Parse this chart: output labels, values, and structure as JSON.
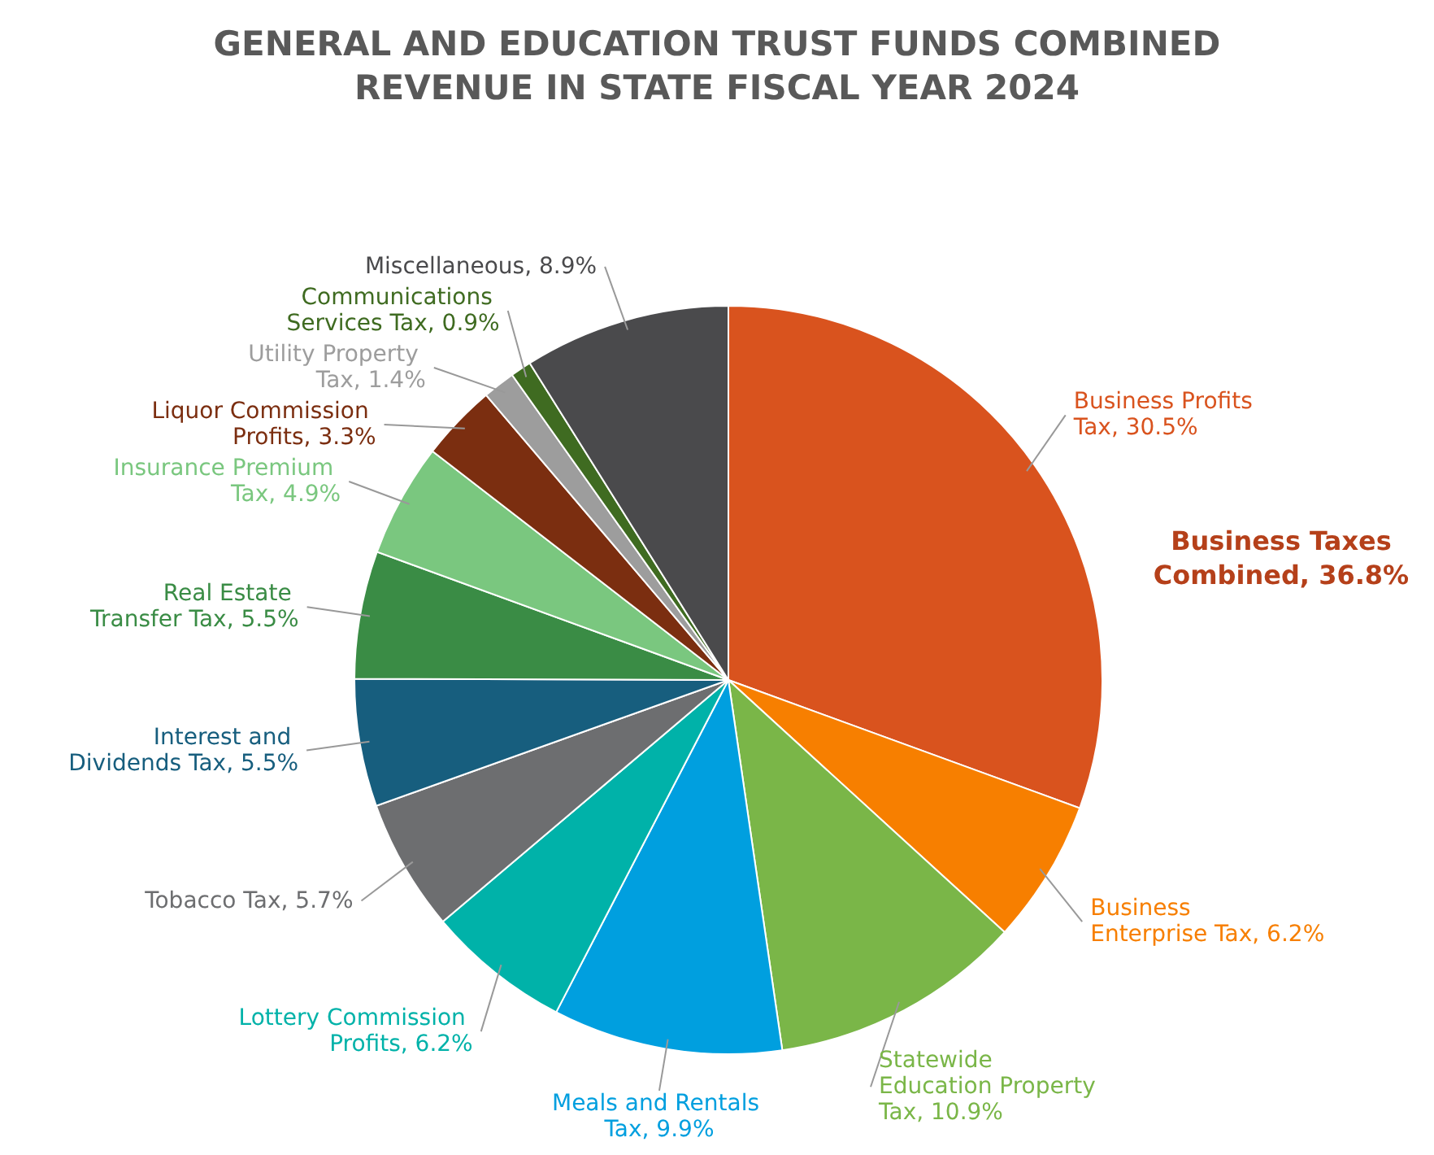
{
  "chart_data": {
    "type": "pie",
    "title": "GENERAL AND EDUCATION TRUST FUNDS COMBINED REVENUE IN STATE FISCAL YEAR 2024",
    "categories": [
      "Business Profits Tax",
      "Business Enterprise Tax",
      "Statewide Education Property Tax",
      "Meals and Rentals Tax",
      "Lottery Commission Profits",
      "Tobacco Tax",
      "Interest and Dividends Tax",
      "Real Estate Transfer Tax",
      "Insurance Premium Tax",
      "Liquor Commission Profits",
      "Utility Property Tax",
      "Communications Services Tax",
      "Miscellaneous"
    ],
    "values": [
      30.5,
      6.2,
      10.9,
      9.9,
      6.2,
      5.7,
      5.5,
      5.5,
      4.9,
      3.3,
      1.4,
      0.9,
      8.9
    ],
    "value_labels": [
      "30.5%",
      "6.2%",
      "10.9%",
      "9.9%",
      "6.2%",
      "5.7%",
      "5.5%",
      "5.5%",
      "4.9%",
      "3.3%",
      "1.4%",
      "0.9%",
      "8.9%"
    ],
    "colors": [
      "#d9531e",
      "#f77f00",
      "#7ab648",
      "#009fdf",
      "#00b2a9",
      "#6d6e70",
      "#175e7e",
      "#3a8c45",
      "#7ac77f",
      "#7b2e10",
      "#9d9d9d",
      "#3f6b21",
      "#4a4a4c"
    ],
    "legend": false,
    "annotations": [
      "Business Taxes Combined, 36.8%"
    ]
  }
}
